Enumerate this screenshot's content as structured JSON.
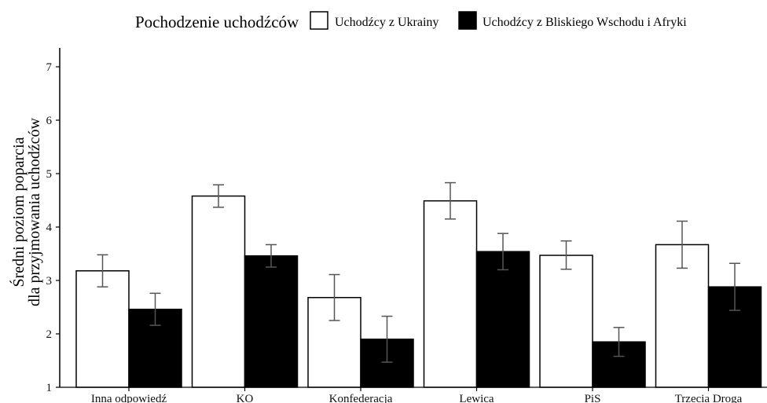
{
  "chart_data": {
    "type": "bar",
    "title": "",
    "xlabel": "",
    "ylabel": "Średni poziom poparcia dla przyjmowania uchodźców",
    "ylabel_lines": [
      "Średni poziom poparcia",
      "dla przyjmowania uchodźców"
    ],
    "ylim": [
      1,
      7.2
    ],
    "yticks": [
      1,
      2,
      3,
      4,
      5,
      6,
      7
    ],
    "grid": false,
    "legend": {
      "title": "Pochodzenie uchodźców",
      "placement": "top"
    },
    "categories": [
      "Inna odpowiedź",
      "KO",
      "Konfederacja",
      "Lewica",
      "PiS",
      "Trzecia Droga"
    ],
    "series": [
      {
        "name": "Uchodźcy z Ukrainy",
        "fill": "#ffffff",
        "values": [
          3.18,
          4.58,
          2.68,
          4.49,
          3.47,
          3.67
        ],
        "error_low": [
          2.88,
          4.37,
          2.25,
          4.15,
          3.21,
          3.23
        ],
        "error_high": [
          3.48,
          4.79,
          3.11,
          4.83,
          3.74,
          4.11
        ]
      },
      {
        "name": "Uchodźcy z Bliskiego Wschodu i Afryki",
        "fill": "#000000",
        "values": [
          2.46,
          3.46,
          1.9,
          3.54,
          1.85,
          2.88
        ],
        "error_low": [
          2.16,
          3.25,
          1.47,
          3.2,
          1.58,
          2.44
        ],
        "error_high": [
          2.76,
          3.67,
          2.33,
          3.88,
          2.12,
          3.32
        ]
      }
    ],
    "colors": {
      "bar_outline": "#000000",
      "error_bar": "#555555",
      "axis": "#000000"
    }
  }
}
